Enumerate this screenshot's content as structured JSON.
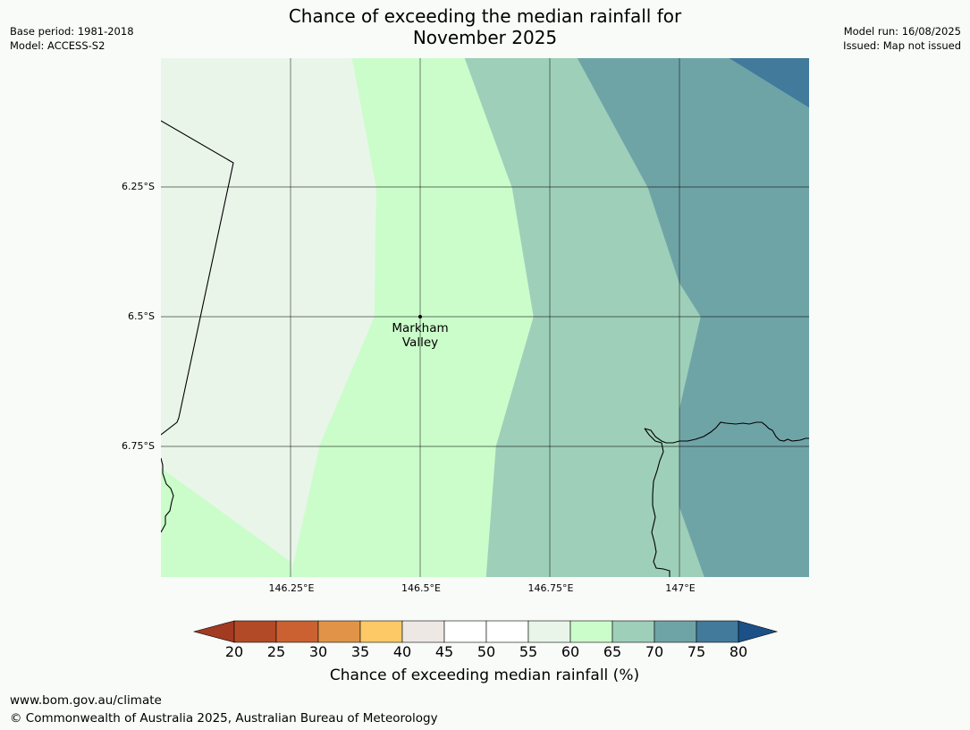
{
  "header": {
    "title_line1": "Chance of exceeding the median rainfall for",
    "title_line2": "November 2025",
    "base_period": "Base period: 1981-2018",
    "model": "Model: ACCESS-S2",
    "model_run": "Model run: 16/08/2025",
    "issued": "Issued: Map not issued"
  },
  "map": {
    "lat_labels": [
      "6.25°S",
      "6.5°S",
      "6.75°S"
    ],
    "lon_labels": [
      "146.25°E",
      "146.5°E",
      "146.75°E",
      "147°E"
    ],
    "place": {
      "line1": "Markham",
      "line2": "Valley"
    }
  },
  "legend": {
    "ticks": [
      "20",
      "25",
      "30",
      "35",
      "40",
      "45",
      "50",
      "55",
      "60",
      "65",
      "70",
      "75",
      "80"
    ],
    "colors": [
      "#a23b22",
      "#b34a27",
      "#cb6131",
      "#e19448",
      "#fdc966",
      "#eee8e5",
      "#ffffff",
      "#ffffff",
      "#eaf5ea",
      "#cbfdcb",
      "#9ecfb9",
      "#6fa4a7",
      "#417a9b",
      "#1b5187"
    ],
    "label": "Chance of exceeding median rainfall (%)"
  },
  "footer": {
    "url": "www.bom.gov.au/climate",
    "copyright": "© Commonwealth of Australia 2025, Australian Bureau of Meteorology"
  }
}
